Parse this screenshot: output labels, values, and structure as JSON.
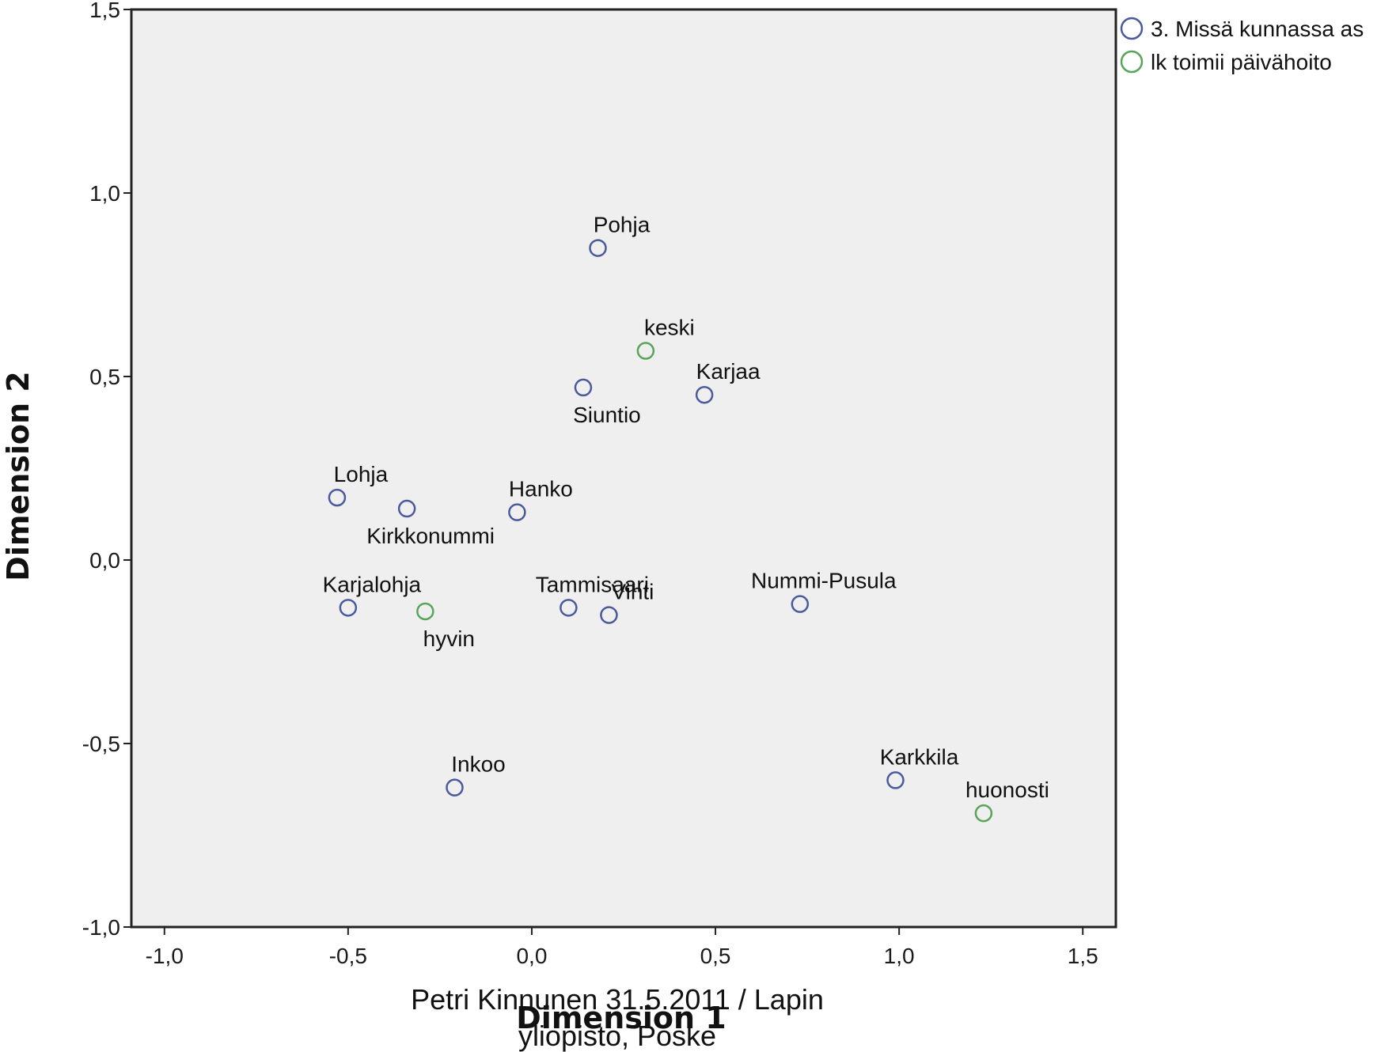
{
  "chart_data": {
    "type": "scatter",
    "title": "",
    "xlabel": "Dimension 1",
    "ylabel": "Dimension 2",
    "xlim": [
      -1.09,
      1.59
    ],
    "ylim": [
      -1.0,
      1.5
    ],
    "xticks": [
      -1.0,
      -0.5,
      0.0,
      0.5,
      1.0,
      1.5
    ],
    "xtick_labels": [
      "-1,0",
      "-0,5",
      "0,0",
      "0,5",
      "1,0",
      "1,5"
    ],
    "yticks": [
      -1.0,
      -0.5,
      0.0,
      0.5,
      1.0,
      1.5
    ],
    "ytick_labels": [
      "-1,0",
      "-0,5",
      "0,0",
      "0,5",
      "1,0",
      "1,5"
    ],
    "grid": false,
    "background_color": "#efefef",
    "legend_position": "top-right",
    "series": [
      {
        "name": "3. Missä kunnassa as",
        "color": "#4a5a9c",
        "marker": "open-circle",
        "points": [
          {
            "label": "Pohja",
            "x": 0.18,
            "y": 0.85,
            "label_pos": "above"
          },
          {
            "label": "Siuntio",
            "x": 0.14,
            "y": 0.47,
            "label_pos": "below"
          },
          {
            "label": "Karjaa",
            "x": 0.47,
            "y": 0.45,
            "label_pos": "above"
          },
          {
            "label": "Lohja",
            "x": -0.53,
            "y": 0.17,
            "label_pos": "above"
          },
          {
            "label": "Kirkkonummi",
            "x": -0.34,
            "y": 0.14,
            "label_pos": "below"
          },
          {
            "label": "Hanko",
            "x": -0.04,
            "y": 0.13,
            "label_pos": "above"
          },
          {
            "label": "Karjalohja",
            "x": -0.5,
            "y": -0.13,
            "label_pos": "above"
          },
          {
            "label": "Tammisaari",
            "x": 0.1,
            "y": -0.13,
            "label_pos": "above"
          },
          {
            "label": "Vihti",
            "x": 0.21,
            "y": -0.15,
            "label_pos": "above"
          },
          {
            "label": "Nummi-Pusula",
            "x": 0.73,
            "y": -0.12,
            "label_pos": "above"
          },
          {
            "label": "Inkoo",
            "x": -0.21,
            "y": -0.62,
            "label_pos": "above"
          },
          {
            "label": "Karkkila",
            "x": 0.99,
            "y": -0.6,
            "label_pos": "above"
          }
        ]
      },
      {
        "name": "lk toimii päivähoito",
        "color": "#5aa35a",
        "marker": "open-circle",
        "points": [
          {
            "label": "keski",
            "x": 0.31,
            "y": 0.57,
            "label_pos": "above"
          },
          {
            "label": "hyvin",
            "x": -0.29,
            "y": -0.14,
            "label_pos": "below"
          },
          {
            "label": "huonosti",
            "x": 1.23,
            "y": -0.69,
            "label_pos": "above"
          }
        ]
      }
    ]
  },
  "footer": {
    "line1": "Petri Kinnunen 31.5.2011 / Lapin",
    "line2": "yliopisto, Poske"
  }
}
